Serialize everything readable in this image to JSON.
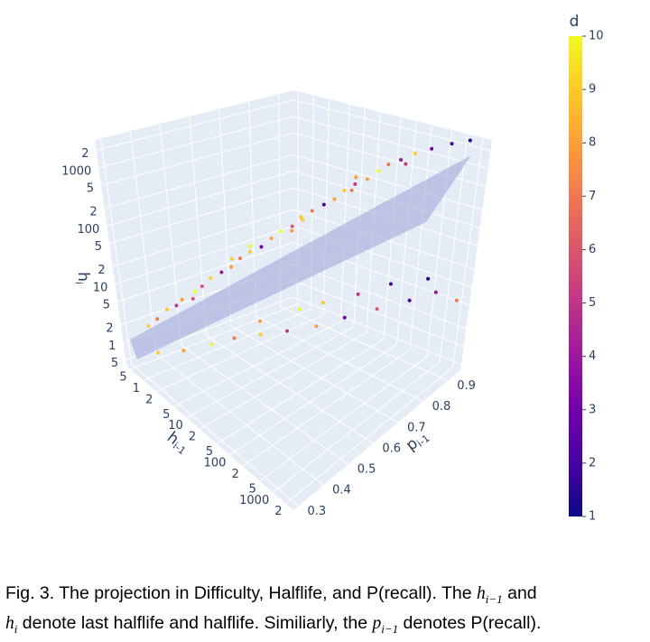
{
  "chart_data": {
    "type": "scatter3d",
    "x_title": "h",
    "x_title_sub": "i-1",
    "y_title": "p",
    "y_title_sub": "i-1",
    "z_title": "h",
    "z_title_sub": "i",
    "xlog": true,
    "zlog": true,
    "xlim": [
      0.4,
      3000
    ],
    "xticks": [
      {
        "value": 0.5,
        "label": "5"
      },
      1,
      2,
      5,
      10,
      {
        "value": 20,
        "label": "2"
      },
      {
        "value": 50,
        "label": "5"
      },
      100,
      {
        "value": 200,
        "label": "2"
      },
      {
        "value": 500,
        "label": "5"
      },
      1000,
      {
        "value": 2000,
        "label": "2"
      }
    ],
    "ylim": [
      0.28,
      0.95
    ],
    "yticks": [
      0.3,
      0.4,
      0.5,
      0.6,
      0.7,
      0.8,
      0.9
    ],
    "zlim": [
      0.4,
      3000
    ],
    "zticks": [
      {
        "value": 0.5,
        "label": "5"
      },
      1,
      2,
      5,
      10,
      {
        "value": 20,
        "label": "2"
      },
      {
        "value": 50,
        "label": "5"
      },
      100,
      {
        "value": 200,
        "label": "2"
      },
      {
        "value": 500,
        "label": "5"
      },
      1000,
      {
        "value": 2000,
        "label": "2"
      }
    ],
    "x": [
      1.2,
      1.5,
      2,
      2.5,
      3,
      4,
      5,
      6,
      8,
      10,
      12,
      15,
      20,
      25,
      30,
      40,
      50,
      60,
      80,
      100,
      120,
      150,
      200,
      250,
      300,
      400,
      500,
      700,
      1000,
      1500,
      3,
      8,
      30,
      100,
      300,
      20,
      60,
      200,
      1.5,
      3,
      6,
      10,
      20,
      40,
      80,
      150,
      300,
      600,
      1000,
      2000,
      50,
      200,
      500,
      10,
      100,
      30
    ],
    "y": [
      0.31,
      0.33,
      0.35,
      0.37,
      0.38,
      0.41,
      0.42,
      0.44,
      0.46,
      0.48,
      0.5,
      0.52,
      0.54,
      0.56,
      0.58,
      0.6,
      0.62,
      0.64,
      0.66,
      0.68,
      0.7,
      0.72,
      0.74,
      0.76,
      0.78,
      0.8,
      0.83,
      0.86,
      0.9,
      0.93,
      0.42,
      0.5,
      0.62,
      0.74,
      0.84,
      0.5,
      0.6,
      0.7,
      0.32,
      0.37,
      0.43,
      0.48,
      0.53,
      0.58,
      0.64,
      0.7,
      0.77,
      0.84,
      0.9,
      0.93,
      0.7,
      0.85,
      0.92,
      0.58,
      0.78,
      0.65
    ],
    "z": [
      3,
      4,
      6,
      7,
      9,
      12,
      15,
      20,
      25,
      30,
      40,
      50,
      60,
      80,
      100,
      120,
      150,
      200,
      250,
      300,
      400,
      500,
      600,
      800,
      1000,
      1200,
      1500,
      1800,
      2200,
      2600,
      8,
      35,
      90,
      350,
      900,
      70,
      180,
      700,
      1.2,
      1.5,
      2,
      2.5,
      3,
      3.5,
      4,
      5,
      6,
      7,
      8,
      6,
      6,
      9,
      10,
      3,
      7,
      5
    ],
    "d": [
      9,
      7,
      9,
      5,
      8,
      10,
      6,
      9,
      4,
      8,
      7,
      9,
      3,
      8,
      10,
      6,
      9,
      7,
      2,
      8,
      9,
      5,
      8,
      10,
      7,
      4,
      9,
      3,
      2,
      1,
      6,
      9,
      8,
      7,
      5,
      10,
      9,
      8,
      9,
      8,
      10,
      7,
      9,
      5,
      8,
      3,
      6,
      2,
      4,
      7,
      9,
      2,
      1,
      8,
      5,
      10
    ],
    "colorbar_title": "d",
    "clim": [
      1,
      10
    ],
    "cticks": [
      1,
      2,
      3,
      4,
      5,
      6,
      7,
      8,
      9,
      10
    ],
    "colorscale": [
      "#0d0887",
      "#46039f",
      "#7201a8",
      "#9c179e",
      "#bd3786",
      "#d8576b",
      "#ed7953",
      "#fb9f3a",
      "#fdca26",
      "#f0f921"
    ],
    "wall_color": "#e5ecf6",
    "grid_color": "#ffffff"
  },
  "caption_lines": [
    [
      {
        "text": "Fig. 3. The projection in Difficulty, Halflife, and P(recall). The "
      },
      {
        "math": "h",
        "sub": "i−1"
      },
      {
        "text": " and"
      }
    ],
    [
      {
        "math": "h",
        "sub": "i"
      },
      {
        "text": " denote last halflife and halflife. Similiarly, the "
      },
      {
        "math": "p",
        "sub": "i−1"
      },
      {
        "text": " denotes P(recall)."
      }
    ]
  ]
}
